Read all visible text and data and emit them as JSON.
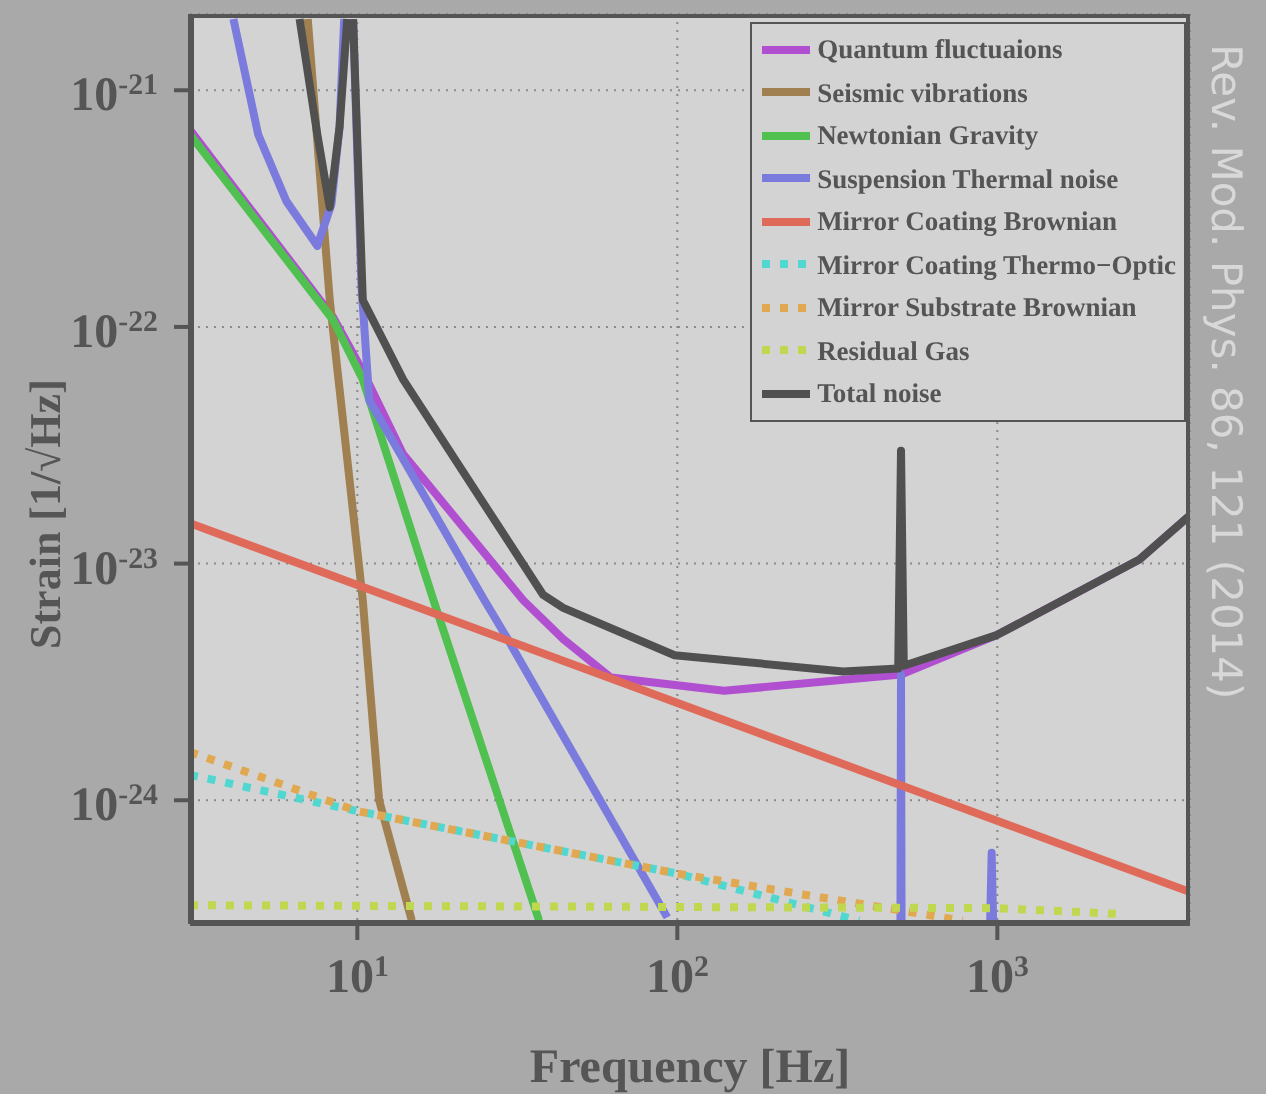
{
  "chart_data": {
    "type": "line",
    "xlabel": "Frequency [Hz]",
    "ylabel": "Strain [1/√Hz]",
    "log": "xy",
    "xlim": [
      3,
      4000
    ],
    "ylim": [
      3e-25,
      2.1e-21
    ],
    "xticks": [
      {
        "value": 10,
        "label": "10$^{1}$"
      },
      {
        "value": 100,
        "label": "10$^{2}$"
      },
      {
        "value": 1000,
        "label": "10$^{3}$"
      }
    ],
    "yticks": [
      {
        "value": 1e-24,
        "label": "10$^{-24}$"
      },
      {
        "value": 1e-23,
        "label": "10$^{-23}$"
      },
      {
        "value": 1e-22,
        "label": "10$^{-22}$"
      },
      {
        "value": 1e-21,
        "label": "10$^{-21}$"
      }
    ],
    "grid": true,
    "legend": "top right",
    "annotations": [
      "Rev. Mod. Phys. 86, 121 (2014)"
    ],
    "series": [
      {
        "name": "Quantum fluctuaions",
        "color": "#b050d0",
        "line_style": "solid",
        "x": [
          3,
          8.4,
          10.4,
          13.9,
          33,
          44,
          62,
          140,
          500,
          1000,
          2780,
          4000
        ],
        "values": [
          6.8e-22,
          1.1e-22,
          6.5e-23,
          2.9e-23,
          7e-24,
          4.8e-24,
          3.3e-24,
          2.9e-24,
          3.4e-24,
          5e-24,
          1.04e-23,
          1.6e-23
        ]
      },
      {
        "name": "Seismic vibrations",
        "color": "#a08050",
        "line_style": "solid",
        "x": [
          7,
          8.2,
          10.4,
          11.7,
          14.8
        ],
        "values": [
          2e-21,
          1.3e-22,
          7e-24,
          1e-24,
          3.1e-25
        ]
      },
      {
        "name": "Newtonian Gravity",
        "color": "#50c050",
        "line_style": "solid",
        "x": [
          3,
          8.4,
          10.4,
          17.3,
          37
        ],
        "values": [
          6.5e-22,
          1.07e-22,
          6e-23,
          7e-24,
          3.1e-25
        ]
      },
      {
        "name": "Suspension Thermal noise",
        "color": "#7b7bdd",
        "line_style": "solid",
        "x": [
          4.1,
          4.9,
          6,
          7.5,
          8.3,
          8.8,
          9.1,
          9.4,
          9.7,
          10.3,
          10.9,
          24.8,
          29.5,
          93,
          300,
          498,
          500,
          502,
          700,
          950,
          960,
          970
        ],
        "values": [
          2e-21,
          6.5e-22,
          3.4e-22,
          2.2e-22,
          3.3e-22,
          7e-22,
          2e-21,
          null,
          2e-21,
          1.5e-22,
          4.9e-23,
          7.1e-24,
          4.8e-24,
          3.2e-25,
          null,
          3.1e-25,
          3.4e-24,
          3.1e-25,
          null,
          3.1e-25,
          6e-25,
          3.1e-25
        ]
      },
      {
        "name": "Mirror Coating Brownian",
        "color": "#e06a5a",
        "line_style": "solid",
        "x": [
          3,
          4000
        ],
        "values": [
          1.48e-23,
          4.1e-25
        ]
      },
      {
        "name": "Mirror Coating Thermo−Optic",
        "color": "#50d8d0",
        "line_style": "dotted",
        "x": [
          3,
          10,
          100,
          370
        ],
        "values": [
          1.28e-24,
          9e-25,
          4.9e-25,
          3.1e-25
        ]
      },
      {
        "name": "Mirror Substrate Brownian",
        "color": "#e0a850",
        "line_style": "dotted",
        "x": [
          3,
          10,
          100,
          247,
          780
        ],
        "values": [
          1.6e-24,
          9e-25,
          4.9e-25,
          4e-25,
          3.1e-25
        ]
      },
      {
        "name": "Residual Gas",
        "color": "#c0d850",
        "line_style": "dotted",
        "x": [
          3,
          1000,
          2500
        ],
        "values": [
          3.6e-25,
          3.5e-25,
          3.3e-25
        ]
      },
      {
        "name": "Total noise",
        "color": "#505050",
        "line_style": "solid",
        "x": [
          6.6,
          7.5,
          8.2,
          8.8,
          9.3,
          9.5,
          9.7,
          10.4,
          13.9,
          38,
          44,
          98,
          330,
          490,
          500,
          510,
          1000,
          2780,
          4000
        ],
        "values": [
          2e-21,
          6.5e-22,
          3.2e-22,
          7e-22,
          2e-21,
          null,
          2e-21,
          1.3e-22,
          6e-23,
          7.4e-24,
          6.5e-24,
          4.1e-24,
          3.5e-24,
          3.6e-24,
          3e-23,
          3.7e-24,
          5e-24,
          1.04e-23,
          1.6e-23
        ]
      }
    ]
  }
}
